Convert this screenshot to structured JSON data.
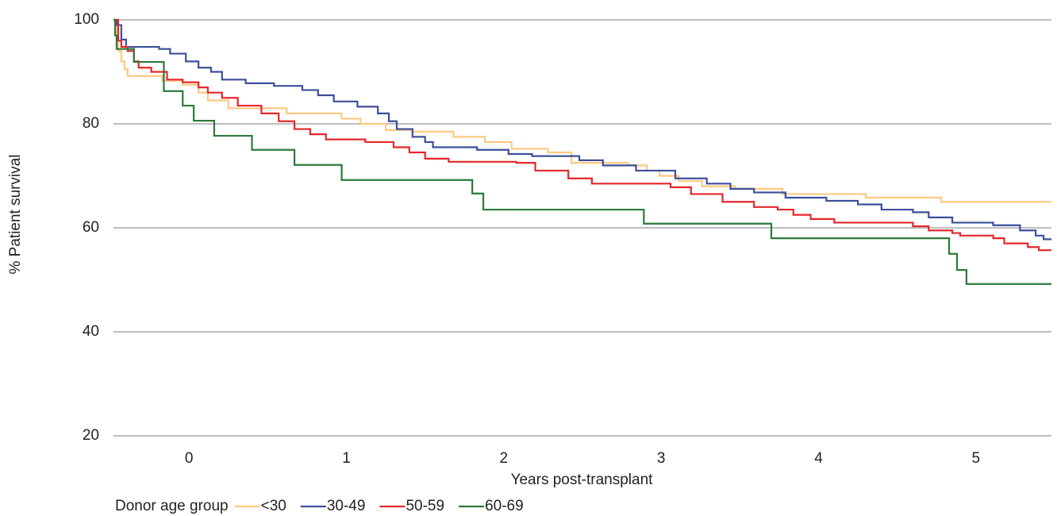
{
  "chart_data": {
    "type": "step",
    "y_label": "% Patient survival",
    "x_label": "Years post-transplant",
    "legend_title": "Donor age group",
    "xlim": [
      -0.48,
      5.48
    ],
    "xticks": [
      0,
      1,
      2,
      3,
      4,
      5
    ],
    "ylim": [
      20,
      100
    ],
    "yticks": [
      20,
      40,
      60,
      80,
      100
    ],
    "grid": true,
    "series": [
      {
        "name": "<30",
        "color": "#fcc980",
        "x": [
          -0.48,
          -0.46,
          -0.45,
          -0.43,
          -0.41,
          -0.39,
          -0.17,
          -0.04,
          0.06,
          0.12,
          0.25,
          0.62,
          0.97,
          1.09,
          1.25,
          1.42,
          1.68,
          1.88,
          2.05,
          2.28,
          2.43,
          2.79,
          2.91,
          2.99,
          3.11,
          3.26,
          3.47,
          3.77,
          4.3,
          4.78,
          5.48
        ],
        "values": [
          100,
          97,
          94,
          92,
          90.5,
          89.2,
          88.3,
          87.5,
          86,
          84.5,
          83,
          82,
          81,
          80,
          78.8,
          78.5,
          77.5,
          76.5,
          75.2,
          74.5,
          72.5,
          72,
          71,
          70,
          69,
          68,
          67.5,
          66.5,
          65.8,
          65,
          65
        ]
      },
      {
        "name": "30-49",
        "color": "#3c4f9b",
        "x": [
          -0.48,
          -0.46,
          -0.43,
          -0.4,
          -0.19,
          -0.12,
          -0.02,
          0.06,
          0.14,
          0.21,
          0.36,
          0.54,
          0.72,
          0.82,
          0.92,
          1.07,
          1.2,
          1.27,
          1.32,
          1.42,
          1.5,
          1.55,
          1.83,
          2.03,
          2.18,
          2.48,
          2.63,
          2.84,
          3.09,
          3.29,
          3.44,
          3.59,
          3.79,
          4.05,
          4.25,
          4.4,
          4.6,
          4.7,
          4.85,
          5.11,
          5.28,
          5.38,
          5.43,
          5.48
        ],
        "values": [
          100,
          99,
          96.2,
          94.8,
          94.4,
          93.5,
          92,
          90.8,
          90,
          88.5,
          87.8,
          87.3,
          86.5,
          85.5,
          84.3,
          83.3,
          82,
          80.5,
          79,
          77.5,
          76.5,
          75.5,
          75,
          74.2,
          73.8,
          73,
          72,
          71,
          69.5,
          68.5,
          67.5,
          66.8,
          65.8,
          65.2,
          64.5,
          63.5,
          63,
          62,
          61,
          60.5,
          59.5,
          58.5,
          57.8,
          57.8
        ]
      },
      {
        "name": "50-59",
        "color": "#e3272b",
        "x": [
          -0.48,
          -0.45,
          -0.43,
          -0.39,
          -0.35,
          -0.32,
          -0.24,
          -0.14,
          -0.04,
          0.06,
          0.12,
          0.21,
          0.31,
          0.46,
          0.57,
          0.67,
          0.77,
          0.87,
          1.12,
          1.3,
          1.4,
          1.5,
          1.65,
          2.08,
          2.2,
          2.41,
          2.56,
          3.01,
          3.06,
          3.19,
          3.39,
          3.59,
          3.74,
          3.84,
          3.95,
          4.1,
          4.6,
          4.7,
          4.85,
          4.9,
          5.11,
          5.18,
          5.33,
          5.4,
          5.48
        ],
        "values": [
          100,
          96,
          94.8,
          94,
          92,
          90.8,
          90,
          88.5,
          88,
          87,
          86,
          85,
          83.5,
          82,
          80.5,
          79,
          78,
          77,
          76.5,
          75.5,
          74.5,
          73.3,
          72.7,
          72.5,
          71,
          69.5,
          68.5,
          68.5,
          67.8,
          66.5,
          65,
          64,
          63.5,
          62.5,
          61.7,
          61,
          60.3,
          59.5,
          59,
          58.5,
          58,
          57,
          56.3,
          55.7,
          55.7
        ]
      },
      {
        "name": "60-69",
        "color": "#2b7a3a",
        "x": [
          -0.48,
          -0.47,
          -0.46,
          -0.35,
          -0.16,
          -0.04,
          0.03,
          0.16,
          0.4,
          0.67,
          0.97,
          1.8,
          1.87,
          2.89,
          3.7,
          4.83,
          4.88,
          4.94,
          5.48
        ],
        "values": [
          100,
          97,
          94.4,
          91.9,
          86.3,
          83.5,
          80.6,
          77.7,
          75.0,
          72.1,
          69.2,
          66.6,
          63.5,
          60.8,
          58.0,
          55.0,
          51.9,
          49.2,
          49.2
        ]
      }
    ]
  }
}
